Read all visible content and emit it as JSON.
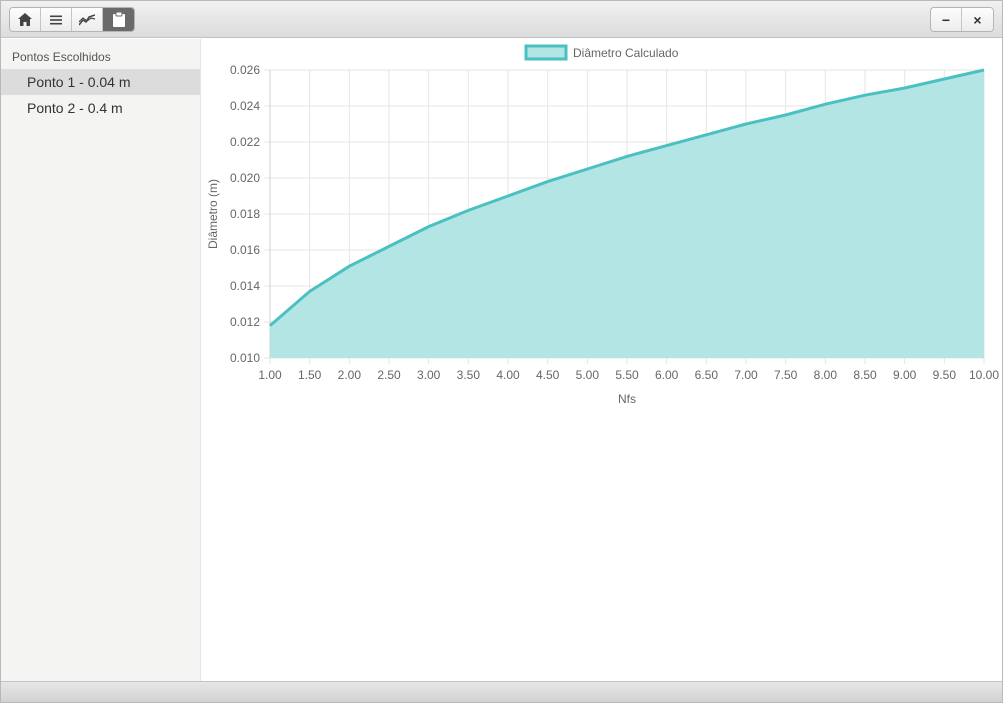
{
  "toolbar": {
    "buttons": [
      {
        "icon": "home-icon"
      },
      {
        "icon": "menu-icon"
      },
      {
        "icon": "chart-line-icon"
      },
      {
        "icon": "clipboard-icon"
      }
    ]
  },
  "window_controls": {
    "minimize_label": "−",
    "close_label": "×"
  },
  "sidebar": {
    "title": "Pontos Escolhidos",
    "items": [
      {
        "label": "Ponto 1 - 0.04 m",
        "selected": true
      },
      {
        "label": "Ponto 2 - 0.4 m",
        "selected": false
      }
    ]
  },
  "chart_data": {
    "type": "area",
    "legend": "Diâmetro Calculado",
    "legend_position": "top",
    "xlabel": "Nfs",
    "ylabel": "Diâmetro (m)",
    "x": [
      1.0,
      1.5,
      2.0,
      2.5,
      3.0,
      3.5,
      4.0,
      4.5,
      5.0,
      5.5,
      6.0,
      6.5,
      7.0,
      7.5,
      8.0,
      8.5,
      9.0,
      9.5,
      10.0
    ],
    "x_tick_labels": [
      "1.00",
      "1.50",
      "2.00",
      "2.50",
      "3.00",
      "3.50",
      "4.00",
      "4.50",
      "5.00",
      "5.50",
      "6.00",
      "6.50",
      "7.00",
      "7.50",
      "8.00",
      "8.50",
      "9.00",
      "9.50",
      "10.00"
    ],
    "series": [
      {
        "values": [
          0.0118,
          0.0137,
          0.0151,
          0.0162,
          0.0173,
          0.0182,
          0.019,
          0.0198,
          0.0205,
          0.0212,
          0.0218,
          0.0224,
          0.023,
          0.0235,
          0.0241,
          0.0246,
          0.025,
          0.0255,
          0.026
        ]
      }
    ],
    "y_ticks": [
      "0.010",
      "0.012",
      "0.014",
      "0.016",
      "0.018",
      "0.020",
      "0.022",
      "0.024",
      "0.026"
    ],
    "ylim": [
      0.01,
      0.026
    ],
    "grid": true,
    "colors": {
      "line": "#4bc0c0",
      "fill": "#b3e5e5"
    }
  }
}
